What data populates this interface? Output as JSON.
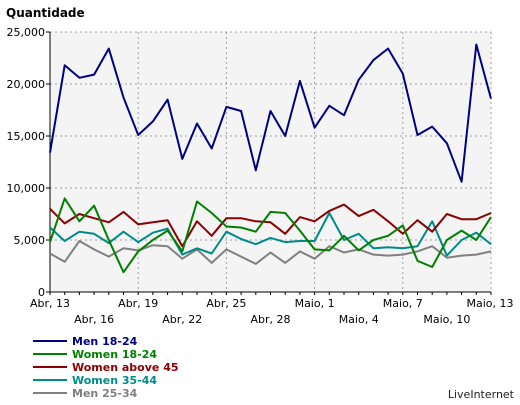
{
  "chart_data": {
    "type": "line",
    "ylabel": "Quantidade",
    "ylim": [
      0,
      25000
    ],
    "yticks": [
      "0",
      "5,000",
      "10,000",
      "15,000",
      "20,000",
      "25,000"
    ],
    "x": [
      "Abr, 13",
      "Abr, 14",
      "Abr, 15",
      "Abr, 16",
      "Abr, 17",
      "Abr, 18",
      "Abr, 19",
      "Abr, 20",
      "Abr, 21",
      "Abr, 22",
      "Abr, 23",
      "Abr, 24",
      "Abr, 25",
      "Abr, 26",
      "Abr, 27",
      "Abr, 28",
      "Abr, 29",
      "Abr, 30",
      "Maio, 1",
      "Maio, 2",
      "Maio, 3",
      "Maio, 4",
      "Maio, 5",
      "Maio, 6",
      "Maio, 7",
      "Maio, 8",
      "Maio, 9",
      "Maio, 10",
      "Maio, 11",
      "Maio, 12",
      "Maio, 13"
    ],
    "xticks_top": [
      "Abr, 13",
      "Abr, 19",
      "Abr, 25",
      "Maio, 1",
      "Maio, 7",
      "Maio, 13"
    ],
    "xticks_bottom": [
      "Abr, 16",
      "Abr, 22",
      "Abr, 28",
      "Maio, 4",
      "Maio, 10"
    ],
    "grid": true,
    "legend_position": "bottom-left",
    "series": [
      {
        "name": "Men 18-24",
        "color": "#000080",
        "values": [
          13400,
          21800,
          20600,
          20900,
          23400,
          18700,
          15100,
          16400,
          18500,
          12800,
          16200,
          13800,
          17800,
          17400,
          11700,
          17400,
          15000,
          20300,
          15800,
          17900,
          17000,
          20400,
          22300,
          23400,
          21000,
          15100,
          15900,
          14300,
          10600,
          23800,
          18600
        ]
      },
      {
        "name": "Women 18-24",
        "color": "#008000",
        "values": [
          4800,
          9000,
          6800,
          8300,
          5000,
          1900,
          3900,
          5000,
          5900,
          3900,
          8700,
          7600,
          6300,
          6200,
          5800,
          7700,
          7600,
          5900,
          4100,
          4000,
          5400,
          4000,
          5000,
          5400,
          6400,
          3000,
          2400,
          5000,
          5900,
          5000,
          7200
        ]
      },
      {
        "name": "Women above 45",
        "color": "#8b0000",
        "values": [
          8000,
          6600,
          7500,
          7100,
          6700,
          7700,
          6500,
          6700,
          6900,
          4400,
          6800,
          5400,
          7100,
          7100,
          6800,
          6700,
          5600,
          7200,
          6800,
          7800,
          8400,
          7300,
          7900,
          6800,
          5600,
          6900,
          5800,
          7500,
          7000,
          7000,
          7600
        ]
      },
      {
        "name": "Women 35-44",
        "color": "#008b8b",
        "values": [
          6200,
          4900,
          5800,
          5600,
          4700,
          5800,
          4800,
          5700,
          6100,
          3600,
          4200,
          3700,
          5800,
          5100,
          4600,
          5200,
          4800,
          4900,
          4900,
          7600,
          5000,
          5600,
          4200,
          4300,
          4200,
          4400,
          6800,
          3500,
          5000,
          5700,
          4600
        ]
      },
      {
        "name": "Men 25-34",
        "color": "#808080",
        "values": [
          3700,
          2900,
          4900,
          4100,
          3400,
          4200,
          4000,
          4500,
          4400,
          3200,
          4100,
          2800,
          4100,
          3400,
          2700,
          3800,
          2800,
          3900,
          3200,
          4400,
          3800,
          4100,
          3600,
          3500,
          3600,
          3900,
          4400,
          3300,
          3500,
          3600,
          3900
        ]
      }
    ]
  },
  "watermark": "LiveInternet"
}
